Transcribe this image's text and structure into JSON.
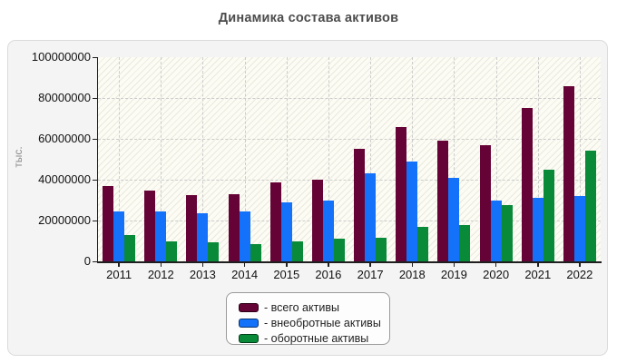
{
  "title": "Динамика состава активов",
  "y_axis": {
    "title": "тыс.",
    "tick_labels": [
      "100000000",
      "80000000",
      "60000000",
      "40000000",
      "20000000",
      "0"
    ],
    "tick_values": [
      100000000,
      80000000,
      60000000,
      40000000,
      20000000,
      0
    ]
  },
  "legend": {
    "items": [
      {
        "label": "- всего активы",
        "color": "#660336"
      },
      {
        "label": "- внеобротные активы",
        "color": "#1371fa"
      },
      {
        "label": "- оборотные активы",
        "color": "#088a38"
      }
    ]
  },
  "colors": {
    "panel_background": "#f4f4f4",
    "panel_border": "#dbdbdb",
    "plot_background": "#fcfcf4",
    "gridline": "#cccccc",
    "axis": "#1f1f1f",
    "title_text": "#4c4c4c",
    "series_total": "#660336",
    "series_noncurrent": "#1371fa",
    "series_current": "#088a38"
  },
  "chart_data": {
    "type": "bar",
    "title": "Динамика состава активов",
    "xlabel": "",
    "ylabel": "тыс.",
    "ylim": [
      0,
      100000000
    ],
    "grid": true,
    "legend_position": "bottom",
    "categories": [
      "2011",
      "2012",
      "2013",
      "2014",
      "2015",
      "2016",
      "2017",
      "2018",
      "2019",
      "2020",
      "2021",
      "2022"
    ],
    "series": [
      {
        "key": "total",
        "name": "всего активы",
        "color": "#660336",
        "values": [
          37000000,
          34500000,
          32500000,
          33000000,
          38500000,
          40000000,
          55000000,
          65600000,
          59000000,
          57000000,
          75300000,
          85800000
        ]
      },
      {
        "key": "noncurrent",
        "name": "внеобротные активы",
        "color": "#1371fa",
        "values": [
          24500000,
          24500000,
          23700000,
          24500000,
          29000000,
          29700000,
          43300000,
          49000000,
          41000000,
          29700000,
          31000000,
          32000000
        ]
      },
      {
        "key": "current",
        "name": "оборотные активы",
        "color": "#088a38",
        "values": [
          13000000,
          10000000,
          9300000,
          8500000,
          10000000,
          11000000,
          11800000,
          16800000,
          18000000,
          27700000,
          44800000,
          54300000
        ]
      }
    ]
  }
}
